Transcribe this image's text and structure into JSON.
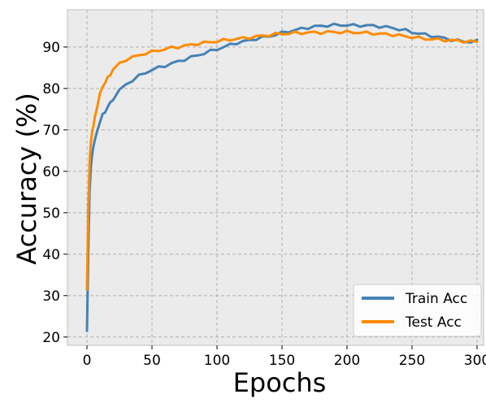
{
  "chart_data": {
    "type": "line",
    "title": "",
    "xlabel": "Epochs",
    "ylabel": "Accuracy (%)",
    "xlim": [
      -15,
      305
    ],
    "ylim": [
      18,
      99
    ],
    "xticks": [
      0,
      50,
      100,
      150,
      200,
      250,
      300
    ],
    "yticks": [
      20,
      30,
      40,
      50,
      60,
      70,
      80,
      90
    ],
    "grid": true,
    "legend_position": "lower-right",
    "background_color": "#ebebeb",
    "series": [
      {
        "name": "Train Acc",
        "color": "#4682b4",
        "x": [
          0,
          1,
          2,
          3,
          4,
          5,
          6,
          8,
          10,
          12,
          14,
          16,
          18,
          20,
          25,
          30,
          35,
          40,
          45,
          50,
          55,
          60,
          65,
          70,
          75,
          80,
          85,
          90,
          95,
          100,
          105,
          110,
          115,
          120,
          125,
          130,
          135,
          140,
          145,
          150,
          155,
          160,
          165,
          170,
          175,
          180,
          185,
          190,
          195,
          200,
          205,
          210,
          215,
          220,
          225,
          230,
          235,
          240,
          245,
          250,
          255,
          260,
          265,
          270,
          275,
          280,
          285,
          290,
          295,
          300
        ],
        "y": [
          21.5,
          40,
          55,
          61,
          64,
          66,
          67.5,
          70,
          72,
          73.5,
          74.5,
          75.5,
          76.5,
          77.5,
          79.5,
          81,
          82,
          83,
          83.8,
          84.5,
          85,
          85.5,
          86,
          86.5,
          87,
          87.5,
          88,
          88.5,
          89,
          89.5,
          90,
          90.5,
          91,
          91.3,
          91.6,
          92,
          92.3,
          92.6,
          93,
          93.4,
          93.8,
          94.1,
          94.4,
          94.7,
          94.9,
          95.1,
          95.2,
          95.3,
          95.3,
          95.3,
          95.2,
          95.2,
          95.2,
          95.1,
          95,
          94.8,
          94.6,
          94.3,
          94,
          93.6,
          93.3,
          93,
          92.7,
          92.4,
          92.1,
          91.8,
          91.5,
          91.3,
          91.3,
          91.4
        ]
      },
      {
        "name": "Test Acc",
        "color": "#ff8c00",
        "x": [
          0,
          1,
          2,
          3,
          4,
          5,
          6,
          8,
          10,
          12,
          14,
          16,
          18,
          20,
          25,
          30,
          35,
          40,
          45,
          50,
          55,
          60,
          65,
          70,
          75,
          80,
          85,
          90,
          95,
          100,
          105,
          110,
          115,
          120,
          125,
          130,
          135,
          140,
          145,
          150,
          155,
          160,
          165,
          170,
          175,
          180,
          185,
          190,
          195,
          200,
          205,
          210,
          215,
          220,
          225,
          230,
          235,
          240,
          245,
          250,
          255,
          260,
          265,
          270,
          275,
          280,
          285,
          290,
          295,
          300
        ],
        "y": [
          31.5,
          50,
          62,
          67,
          69.5,
          71,
          73,
          76,
          78.5,
          80.5,
          81.5,
          82.5,
          83.5,
          84.5,
          86,
          87,
          87.5,
          88,
          88.5,
          88.8,
          89.2,
          89.5,
          89.8,
          90,
          90.3,
          90.5,
          90.8,
          91,
          91.2,
          91.4,
          91.6,
          91.8,
          92,
          92.1,
          92.3,
          92.5,
          92.7,
          92.9,
          93.1,
          93.2,
          93.3,
          93.4,
          93.4,
          93.5,
          93.5,
          93.5,
          93.6,
          93.6,
          93.6,
          93.6,
          93.5,
          93.5,
          93.4,
          93.3,
          93.2,
          93.1,
          93,
          92.8,
          92.6,
          92.4,
          92.2,
          92,
          91.9,
          91.8,
          91.7,
          91.6,
          91.5,
          91.4,
          91.3,
          91.3
        ]
      }
    ]
  }
}
